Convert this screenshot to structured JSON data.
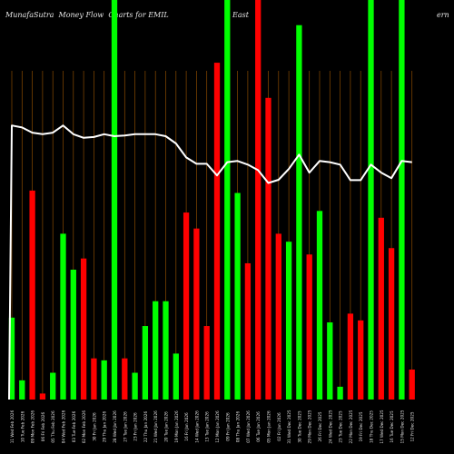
{
  "title": {
    "left": "MunafaSutra  Money Flow  Charts for EMIL",
    "middle": "East",
    "right": "ern  C"
  },
  "colors": {
    "background": "#000000",
    "up": "#00ff00",
    "down": "#ff0000",
    "grid": "#8a4b00",
    "line": "#ffffff",
    "text": "#e6e6e6"
  },
  "chart_data": {
    "type": "bar",
    "ylim": [
      0,
      100
    ],
    "grid": "vertical",
    "bars": [
      {
        "x": "11 Wed Feb 2026",
        "value": 20.5,
        "color": "green"
      },
      {
        "x": "10 Tue Feb 2026",
        "value": 4.8,
        "color": "green"
      },
      {
        "x": "09 Mon Feb 2026",
        "value": 52.3,
        "color": "red"
      },
      {
        "x": "06 Fri Feb 2026",
        "value": 1.5,
        "color": "red"
      },
      {
        "x": "05 Thu Feb 2026",
        "value": 6.7,
        "color": "green"
      },
      {
        "x": "04 Wed Feb 2026",
        "value": 41.5,
        "color": "green"
      },
      {
        "x": "03 Tue Feb 2026",
        "value": 32.5,
        "color": "green"
      },
      {
        "x": "02 Mon Feb 2026",
        "value": 35.3,
        "color": "red"
      },
      {
        "x": "30 Fri Jan 2026",
        "value": 10.3,
        "color": "red"
      },
      {
        "x": "29 Thu Jan 2026",
        "value": 9.8,
        "color": "green"
      },
      {
        "x": "28 Wed Jan 2026",
        "value": 100,
        "color": "green"
      },
      {
        "x": "27 Tue Jan 2026",
        "value": 10.3,
        "color": "red"
      },
      {
        "x": "23 Fri Jan 2026",
        "value": 6.7,
        "color": "green"
      },
      {
        "x": "22 Thu Jan 2026",
        "value": 18.4,
        "color": "green"
      },
      {
        "x": "21 Wed Jan 2026",
        "value": 24.6,
        "color": "green"
      },
      {
        "x": "20 Tue Jan 2026",
        "value": 24.6,
        "color": "green"
      },
      {
        "x": "19 Mon Jan 2026",
        "value": 11.5,
        "color": "green"
      },
      {
        "x": "16 Fri Jan 2026",
        "value": 46.8,
        "color": "red"
      },
      {
        "x": "14 Wed Jan 2026",
        "value": 42.8,
        "color": "red"
      },
      {
        "x": "13 Tue Jan 2026",
        "value": 18.4,
        "color": "red"
      },
      {
        "x": "12 Mon Jan 2026",
        "value": 84.3,
        "color": "red"
      },
      {
        "x": "09 Fri Jan 2026",
        "value": 100,
        "color": "green"
      },
      {
        "x": "08 Thu Jan 2026",
        "value": 51.7,
        "color": "green"
      },
      {
        "x": "07 Wed Jan 2026",
        "value": 34.1,
        "color": "red"
      },
      {
        "x": "06 Tue Jan 2026",
        "value": 100,
        "color": "red"
      },
      {
        "x": "05 Mon Jan 2026",
        "value": 75.5,
        "color": "red"
      },
      {
        "x": "02 Fri Jan 2026",
        "value": 41.5,
        "color": "red"
      },
      {
        "x": "31 Wed Dec 2025",
        "value": 39.5,
        "color": "green"
      },
      {
        "x": "30 Tue Dec 2025",
        "value": 93.7,
        "color": "green"
      },
      {
        "x": "29 Mon Dec 2025",
        "value": 36.3,
        "color": "red"
      },
      {
        "x": "26 Fri Dec 2025",
        "value": 47.2,
        "color": "green"
      },
      {
        "x": "24 Wed Dec 2025",
        "value": 19.3,
        "color": "green"
      },
      {
        "x": "23 Tue Dec 2025",
        "value": 3.2,
        "color": "green"
      },
      {
        "x": "22 Mon Dec 2025",
        "value": 21.5,
        "color": "red"
      },
      {
        "x": "19 Fri Dec 2025",
        "value": 19.8,
        "color": "red"
      },
      {
        "x": "18 Thu Dec 2025",
        "value": 100,
        "color": "green"
      },
      {
        "x": "17 Wed Dec 2025",
        "value": 45.5,
        "color": "red"
      },
      {
        "x": "16 Tue Dec 2025",
        "value": 37.9,
        "color": "red"
      },
      {
        "x": "15 Mon Dec 2025",
        "value": 100,
        "color": "green"
      },
      {
        "x": "12 Fri Dec 2025",
        "value": 7.5,
        "color": "red"
      }
    ],
    "line_values": [
      68.6,
      68.1,
      66.8,
      66.4,
      66.8,
      68.6,
      66.4,
      65.5,
      65.7,
      66.4,
      65.9,
      66.1,
      66.4,
      66.4,
      66.4,
      65.9,
      64.1,
      60.6,
      59.0,
      59.0,
      56.1,
      59.4,
      59.7,
      58.8,
      57.4,
      54.2,
      55.0,
      57.7,
      61.3,
      56.8,
      59.7,
      59.4,
      58.8,
      54.9,
      54.9,
      58.8,
      56.8,
      55.4,
      59.7,
      59.4
    ],
    "line_start_value": 0
  }
}
